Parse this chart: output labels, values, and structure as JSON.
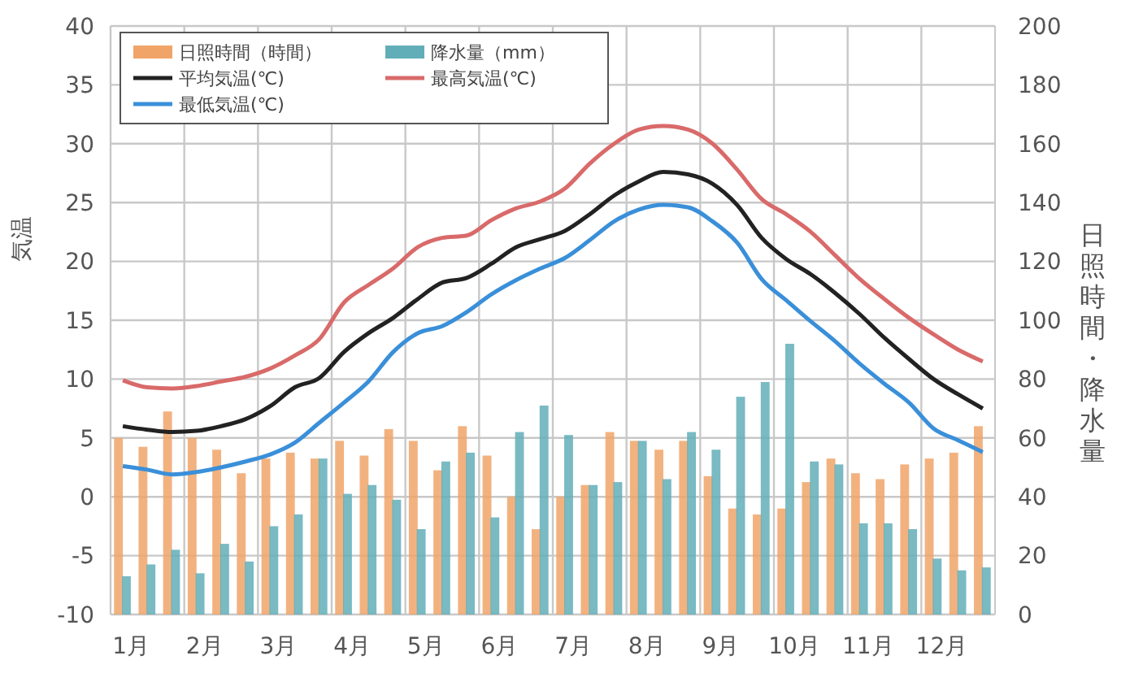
{
  "chart_data": {
    "type": "bar",
    "ylabel": "気温",
    "y2label": "日照時間・降水量",
    "categories": [
      "1月",
      null,
      null,
      "2月",
      null,
      null,
      "3月",
      null,
      null,
      "4月",
      null,
      null,
      "5月",
      null,
      null,
      "6月",
      null,
      null,
      "7月",
      null,
      null,
      "8月",
      null,
      null,
      "9月",
      null,
      null,
      "10月",
      null,
      null,
      "11月",
      null,
      null,
      "12月",
      null,
      null
    ],
    "series": [
      {
        "name": "日照時間（時間）",
        "axis": "y2",
        "color": "#f0a468",
        "values": [
          60,
          57,
          69,
          60,
          56,
          48,
          53,
          55,
          53,
          59,
          54,
          63,
          59,
          49,
          64,
          54,
          40,
          29,
          40,
          44,
          62,
          59,
          56,
          59,
          47,
          36,
          34,
          36,
          45,
          53,
          48,
          46,
          51,
          53,
          55,
          64
        ]
      },
      {
        "name": "降水量（mm）",
        "axis": "y2",
        "color": "#62aeb8",
        "values": [
          13,
          17,
          22,
          14,
          24,
          18,
          30,
          34,
          53,
          41,
          44,
          39,
          29,
          52,
          55,
          33,
          62,
          71,
          61,
          44,
          45,
          59,
          46,
          62,
          56,
          74,
          79,
          92,
          52,
          51,
          31,
          31,
          29,
          19,
          15,
          16
        ]
      },
      {
        "name": "平均気温(℃)",
        "type": "line",
        "color": "#222222",
        "values": [
          6.0,
          5.7,
          5.5,
          5.6,
          6.0,
          6.6,
          7.7,
          9.3,
          10.1,
          12.3,
          13.9,
          15.2,
          16.8,
          18.2,
          18.6,
          19.8,
          21.2,
          21.9,
          22.6,
          24.0,
          25.6,
          26.8,
          27.6,
          27.4,
          26.6,
          24.8,
          22.0,
          20.2,
          18.9,
          17.3,
          15.5,
          13.5,
          11.7,
          10.0,
          8.7,
          7.5
        ]
      },
      {
        "name": "最高気温(℃)",
        "type": "line",
        "color": "#d96a6a",
        "values": [
          9.9,
          9.3,
          9.2,
          9.4,
          9.8,
          10.2,
          10.9,
          12.0,
          13.4,
          16.5,
          18.0,
          19.4,
          21.2,
          22.0,
          22.2,
          23.5,
          24.5,
          25.1,
          26.2,
          28.3,
          30.0,
          31.2,
          31.5,
          31.2,
          30.0,
          27.8,
          25.3,
          24.0,
          22.5,
          20.5,
          18.5,
          16.8,
          15.2,
          13.8,
          12.5,
          11.5
        ]
      },
      {
        "name": "最低気温(℃)",
        "type": "line",
        "color": "#3a8fd9",
        "values": [
          2.6,
          2.3,
          1.9,
          2.1,
          2.5,
          3.0,
          3.6,
          4.6,
          6.3,
          8.0,
          9.8,
          12.3,
          13.9,
          14.5,
          15.7,
          17.2,
          18.4,
          19.4,
          20.3,
          21.8,
          23.4,
          24.4,
          24.8,
          24.6,
          23.4,
          21.6,
          18.5,
          16.7,
          14.9,
          13.2,
          11.3,
          9.6,
          8.0,
          5.8,
          4.8,
          3.8
        ]
      }
    ],
    "ylim": [
      -10,
      40
    ],
    "yticks": [
      -10,
      -5,
      0,
      5,
      10,
      15,
      20,
      25,
      30,
      35,
      40
    ],
    "y2lim": [
      0,
      200
    ],
    "y2ticks": [
      0,
      20,
      40,
      60,
      80,
      100,
      120,
      140,
      160,
      180,
      200
    ],
    "grid": true,
    "legend": "top left",
    "marker": "none",
    "line_style": "solid"
  }
}
